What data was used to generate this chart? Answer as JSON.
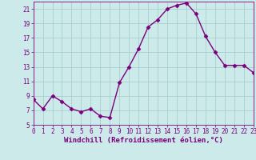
{
  "x": [
    0,
    1,
    2,
    3,
    4,
    5,
    6,
    7,
    8,
    9,
    10,
    11,
    12,
    13,
    14,
    15,
    16,
    17,
    18,
    19,
    20,
    21,
    22,
    23
  ],
  "y": [
    8.5,
    7.2,
    9.0,
    8.2,
    7.2,
    6.8,
    7.2,
    6.2,
    6.0,
    10.8,
    13.0,
    15.5,
    18.5,
    19.5,
    21.0,
    21.5,
    21.8,
    20.3,
    17.2,
    15.0,
    13.2,
    13.2,
    13.2,
    12.2
  ],
  "xlim": [
    0,
    23
  ],
  "ylim": [
    5,
    22
  ],
  "yticks": [
    5,
    7,
    9,
    11,
    13,
    15,
    17,
    19,
    21
  ],
  "xticks": [
    0,
    1,
    2,
    3,
    4,
    5,
    6,
    7,
    8,
    9,
    10,
    11,
    12,
    13,
    14,
    15,
    16,
    17,
    18,
    19,
    20,
    21,
    22,
    23
  ],
  "xlabel": "Windchill (Refroidissement éolien,°C)",
  "line_color": "#7b007b",
  "marker": "D",
  "bg_color": "#cceaea",
  "grid_color": "#aacece",
  "tick_color": "#7b007b",
  "label_color": "#7b007b",
  "marker_size": 2.5,
  "line_width": 1.0,
  "font_size_ticks": 5.5,
  "font_size_xlabel": 6.5
}
